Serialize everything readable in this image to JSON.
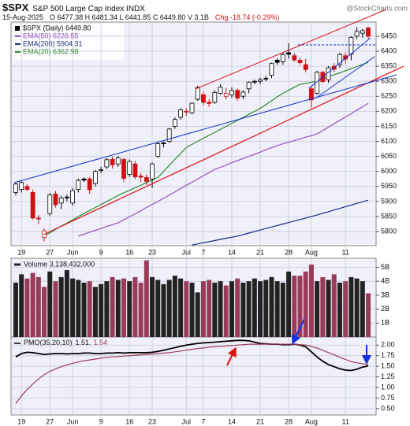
{
  "chart_data": [
    {
      "type": "candlestick",
      "title": "$SPX",
      "subtitle": "S&P 500 Large Cap Index INDX",
      "source": "@StockCharts.com",
      "date": "15-Aug-2025",
      "quote": "O 6477.38 H 6481.34 L 6441.85 C 6449.80 V 3.1B",
      "change": "Chg -18.74 (-0.29%)",
      "name": "$SPX (Daily) 6449.80",
      "color": "#000000",
      "down_color": "#d01010",
      "categories": [
        null,
        "19",
        null,
        null,
        null,
        null,
        "27",
        null,
        null,
        null,
        "Jun",
        null,
        null,
        null,
        null,
        "9",
        null,
        null,
        null,
        null,
        "16",
        null,
        null,
        null,
        "23",
        null,
        null,
        null,
        null,
        null,
        "Jul",
        null,
        null,
        "7",
        null,
        null,
        null,
        null,
        "14",
        null,
        null,
        null,
        null,
        "21",
        null,
        null,
        null,
        null,
        "28",
        null,
        null,
        null,
        "Aug",
        null,
        null,
        null,
        null,
        null,
        "11",
        null,
        null,
        null,
        null
      ],
      "open": [
        5930,
        5940,
        5950,
        5930,
        5845,
        5780,
        5860,
        5925,
        5895,
        5915,
        5895,
        5940,
        5975,
        5975,
        5960,
        6005,
        6015,
        6040,
        6025,
        6040,
        5990,
        6025,
        5985,
        5980,
        5975,
        6050,
        6095,
        6100,
        6150,
        6180,
        6200,
        6195,
        6240,
        6255,
        6230,
        6230,
        6260,
        6250,
        6255,
        6270,
        6250,
        6275,
        6300,
        6300,
        6310,
        6320,
        6370,
        6365,
        6395,
        6385,
        6370,
        6355,
        6275,
        6260,
        6330,
        6305,
        6350,
        6355,
        6385,
        6390,
        6450,
        6460,
        6477.38
      ],
      "high": [
        5966,
        5970,
        5958,
        5940,
        5855,
        5810,
        5928,
        5935,
        5920,
        5922,
        5945,
        5976,
        5980,
        5982,
        6005,
        6016,
        6045,
        6050,
        6052,
        6045,
        6040,
        6035,
        5995,
        5990,
        6030,
        6098,
        6100,
        6145,
        6180,
        6210,
        6210,
        6230,
        6285,
        6265,
        6240,
        6270,
        6290,
        6278,
        6280,
        6276,
        6270,
        6300,
        6305,
        6312,
        6318,
        6362,
        6376,
        6395,
        6427,
        6394,
        6378,
        6375,
        6282,
        6335,
        6335,
        6350,
        6360,
        6395,
        6395,
        6450,
        6480,
        6475,
        6481.34
      ],
      "low": [
        5920,
        5930,
        5935,
        5840,
        5825,
        5767,
        5852,
        5880,
        5875,
        5900,
        5886,
        5930,
        5965,
        5925,
        5950,
        5995,
        6008,
        6010,
        6015,
        5965,
        5982,
        5975,
        5965,
        5955,
        5945,
        6045,
        6080,
        6095,
        6142,
        6172,
        6185,
        6190,
        6235,
        6220,
        6215,
        6225,
        6255,
        6240,
        6245,
        6235,
        6240,
        6260,
        6290,
        6290,
        6300,
        6310,
        6355,
        6355,
        6375,
        6365,
        6355,
        6330,
        6212,
        6255,
        6295,
        6295,
        6330,
        6345,
        6360,
        6370,
        6440,
        6445,
        6441.85
      ],
      "close": [
        5958,
        5963,
        5940,
        5845,
        5842,
        5802,
        5922,
        5889,
        5912,
        5912,
        5936,
        5970,
        5971,
        5939,
        6000,
        6006,
        6039,
        6022,
        6045,
        5977,
        6033,
        5982,
        5981,
        5967,
        6025,
        6092,
        6092,
        6141,
        6173,
        6205,
        6198,
        6227,
        6279,
        6230,
        6226,
        6263,
        6280,
        6260,
        6269,
        6244,
        6264,
        6297,
        6297,
        6305,
        6309,
        6359,
        6363,
        6389,
        6390,
        6371,
        6362,
        6339,
        6238,
        6330,
        6299,
        6345,
        6340,
        6389,
        6374,
        6446,
        6466,
        6468.54,
        6449.8
      ],
      "overlays": [
        {
          "name": "EMA(50) 6226.55",
          "color": "#9a4fc4",
          "values": [
            null,
            null,
            null,
            null,
            null,
            null,
            null,
            null,
            null,
            null,
            null,
            5785,
            5791,
            5798,
            5804,
            5810,
            5817,
            5823,
            5829,
            5839,
            5849,
            5859,
            5869,
            5880,
            5890,
            5900,
            5911,
            5921,
            5932,
            5943,
            5954,
            5964,
            5975,
            5986,
            5996,
            6007,
            6014,
            6021,
            6029,
            6036,
            6043,
            6050,
            6057,
            6064,
            6072,
            6079,
            6086,
            6092,
            6097,
            6103,
            6108,
            6114,
            6119,
            6125,
            6136,
            6147,
            6159,
            6170,
            6181,
            6192,
            6204,
            6215,
            6226.55
          ]
        },
        {
          "name": "EMA(200) 5904.31",
          "color": "#1a2a8a",
          "values": [
            null,
            null,
            null,
            null,
            null,
            null,
            null,
            null,
            null,
            null,
            null,
            null,
            null,
            null,
            null,
            null,
            null,
            null,
            null,
            null,
            null,
            null,
            null,
            null,
            null,
            null,
            null,
            null,
            null,
            null,
            null,
            5755,
            5759,
            5763,
            5766,
            5770,
            5774,
            5778,
            5781,
            5785,
            5790,
            5795,
            5800,
            5805,
            5810,
            5815,
            5820,
            5825,
            5830,
            5835,
            5840,
            5845,
            5850,
            5855,
            5861,
            5866,
            5872,
            5877,
            5883,
            5888,
            5894,
            5899,
            5904.31
          ]
        },
        {
          "name": "EMA(20) 6362.98",
          "color": "#2d8a2d",
          "values": [
            null,
            null,
            null,
            null,
            null,
            5785,
            5796,
            5807,
            5818,
            5828,
            5839,
            5850,
            5860,
            5870,
            5880,
            5890,
            5900,
            5910,
            5920,
            5929,
            5937,
            5946,
            5954,
            5963,
            5971,
            5980,
            6000,
            6020,
            6040,
            6060,
            6080,
            6090,
            6100,
            6110,
            6120,
            6130,
            6140,
            6150,
            6160,
            6170,
            6180,
            6190,
            6200,
            6210,
            6222,
            6235,
            6248,
            6260,
            6270,
            6280,
            6290,
            6293,
            6297,
            6300,
            6308,
            6315,
            6322,
            6328,
            6335,
            6342,
            6349,
            6356,
            6362.98
          ]
        }
      ],
      "ylim": [
        5753,
        6497
      ],
      "yticks": [
        5800,
        5850,
        5900,
        5950,
        6000,
        6050,
        6100,
        6150,
        6200,
        6250,
        6300,
        6350,
        6400,
        6450
      ],
      "grid": true
    },
    {
      "type": "bar",
      "title": "Volume 3,138,432,000",
      "color": "#222222",
      "down_color": "#9b3b5a",
      "values": [
        3900000000,
        4500000000,
        4200000000,
        4600000000,
        4300000000,
        3600000000,
        4700000000,
        4000000000,
        4300000000,
        4800000000,
        4200000000,
        4100000000,
        3900000000,
        4000000000,
        3600000000,
        3800000000,
        4000000000,
        4300000000,
        4100000000,
        4200000000,
        4000000000,
        4300000000,
        3900000000,
        5500000000,
        4300000000,
        4100000000,
        3800000000,
        4100000000,
        4400000000,
        4200000000,
        4000000000,
        3900000000,
        3200000000,
        4000000000,
        4100000000,
        3900000000,
        4000000000,
        3700000000,
        4000000000,
        4200000000,
        3900000000,
        4000000000,
        4200000000,
        4000000000,
        4100000000,
        4300000000,
        4000000000,
        3900000000,
        4700000000,
        4400000000,
        4400000000,
        4700000000,
        5200000000,
        4000000000,
        4300000000,
        4100000000,
        4500000000,
        3900000000,
        4000000000,
        4300000000,
        4200000000,
        4000000000,
        3138432000
      ],
      "ylim": [
        0,
        5650000000
      ],
      "yticks": [
        {
          "value": 1000000000,
          "label": "1B"
        },
        {
          "value": 2000000000,
          "label": "2B"
        },
        {
          "value": 3000000000,
          "label": "3B"
        },
        {
          "value": 4000000000,
          "label": "4B"
        },
        {
          "value": 5000000000,
          "label": "5B"
        }
      ],
      "grid": true
    },
    {
      "type": "line",
      "title": "PMO(35,20,10)",
      "categories": [
        null,
        "19",
        null,
        null,
        null,
        null,
        "27",
        null,
        null,
        null,
        "Jun",
        null,
        null,
        null,
        null,
        "9",
        null,
        null,
        null,
        null,
        "16",
        null,
        null,
        null,
        "23",
        null,
        null,
        null,
        null,
        null,
        "Jul",
        null,
        null,
        "7",
        null,
        null,
        null,
        null,
        "14",
        null,
        null,
        null,
        null,
        "21",
        null,
        null,
        null,
        null,
        "28",
        null,
        null,
        null,
        "Aug",
        null,
        null,
        null,
        null,
        null,
        "11",
        null,
        null,
        null,
        null
      ],
      "series": [
        {
          "name": "1.51,",
          "color": "#000000",
          "values": [
            1.72,
            1.8,
            1.83,
            1.82,
            1.8,
            1.78,
            1.79,
            1.8,
            1.8,
            1.79,
            1.8,
            1.8,
            1.81,
            1.81,
            1.8,
            1.8,
            1.81,
            1.81,
            1.82,
            1.81,
            1.82,
            1.82,
            1.82,
            1.82,
            1.83,
            1.85,
            1.88,
            1.91,
            1.94,
            1.97,
            2.0,
            2.02,
            2.04,
            2.05,
            2.06,
            2.07,
            2.08,
            2.09,
            2.1,
            2.11,
            2.11,
            2.1,
            2.07,
            2.04,
            2.03,
            2.02,
            2.02,
            2.01,
            2.01,
            2.02,
            2.0,
            1.96,
            1.84,
            1.72,
            1.62,
            1.54,
            1.49,
            1.44,
            1.41,
            1.4,
            1.43,
            1.48,
            1.51
          ]
        },
        {
          "name": "1.54",
          "color": "#9b3b5a",
          "values": [
            0.62,
            0.8,
            0.95,
            1.08,
            1.2,
            1.3,
            1.38,
            1.44,
            1.49,
            1.53,
            1.57,
            1.6,
            1.63,
            1.65,
            1.67,
            1.69,
            1.71,
            1.72,
            1.73,
            1.74,
            1.75,
            1.76,
            1.77,
            1.78,
            1.79,
            1.8,
            1.81,
            1.82,
            1.84,
            1.86,
            1.88,
            1.9,
            1.92,
            1.93,
            1.95,
            1.96,
            1.97,
            1.98,
            1.99,
            2.0,
            2.01,
            2.02,
            2.02,
            2.02,
            2.02,
            2.02,
            2.02,
            2.02,
            2.02,
            2.02,
            2.01,
            2.0,
            1.97,
            1.93,
            1.88,
            1.82,
            1.77,
            1.71,
            1.66,
            1.61,
            1.58,
            1.56,
            1.54
          ]
        }
      ],
      "ylim": [
        0.35,
        2.19
      ],
      "yticks": [
        {
          "value": 0.5,
          "label": "0.50"
        },
        0.75,
        {
          "value": 1,
          "label": "1.00"
        },
        1.25,
        {
          "value": 1.5,
          "label": "1.50"
        },
        1.75,
        {
          "value": 2,
          "label": "2.00"
        }
      ],
      "grid": true
    }
  ]
}
